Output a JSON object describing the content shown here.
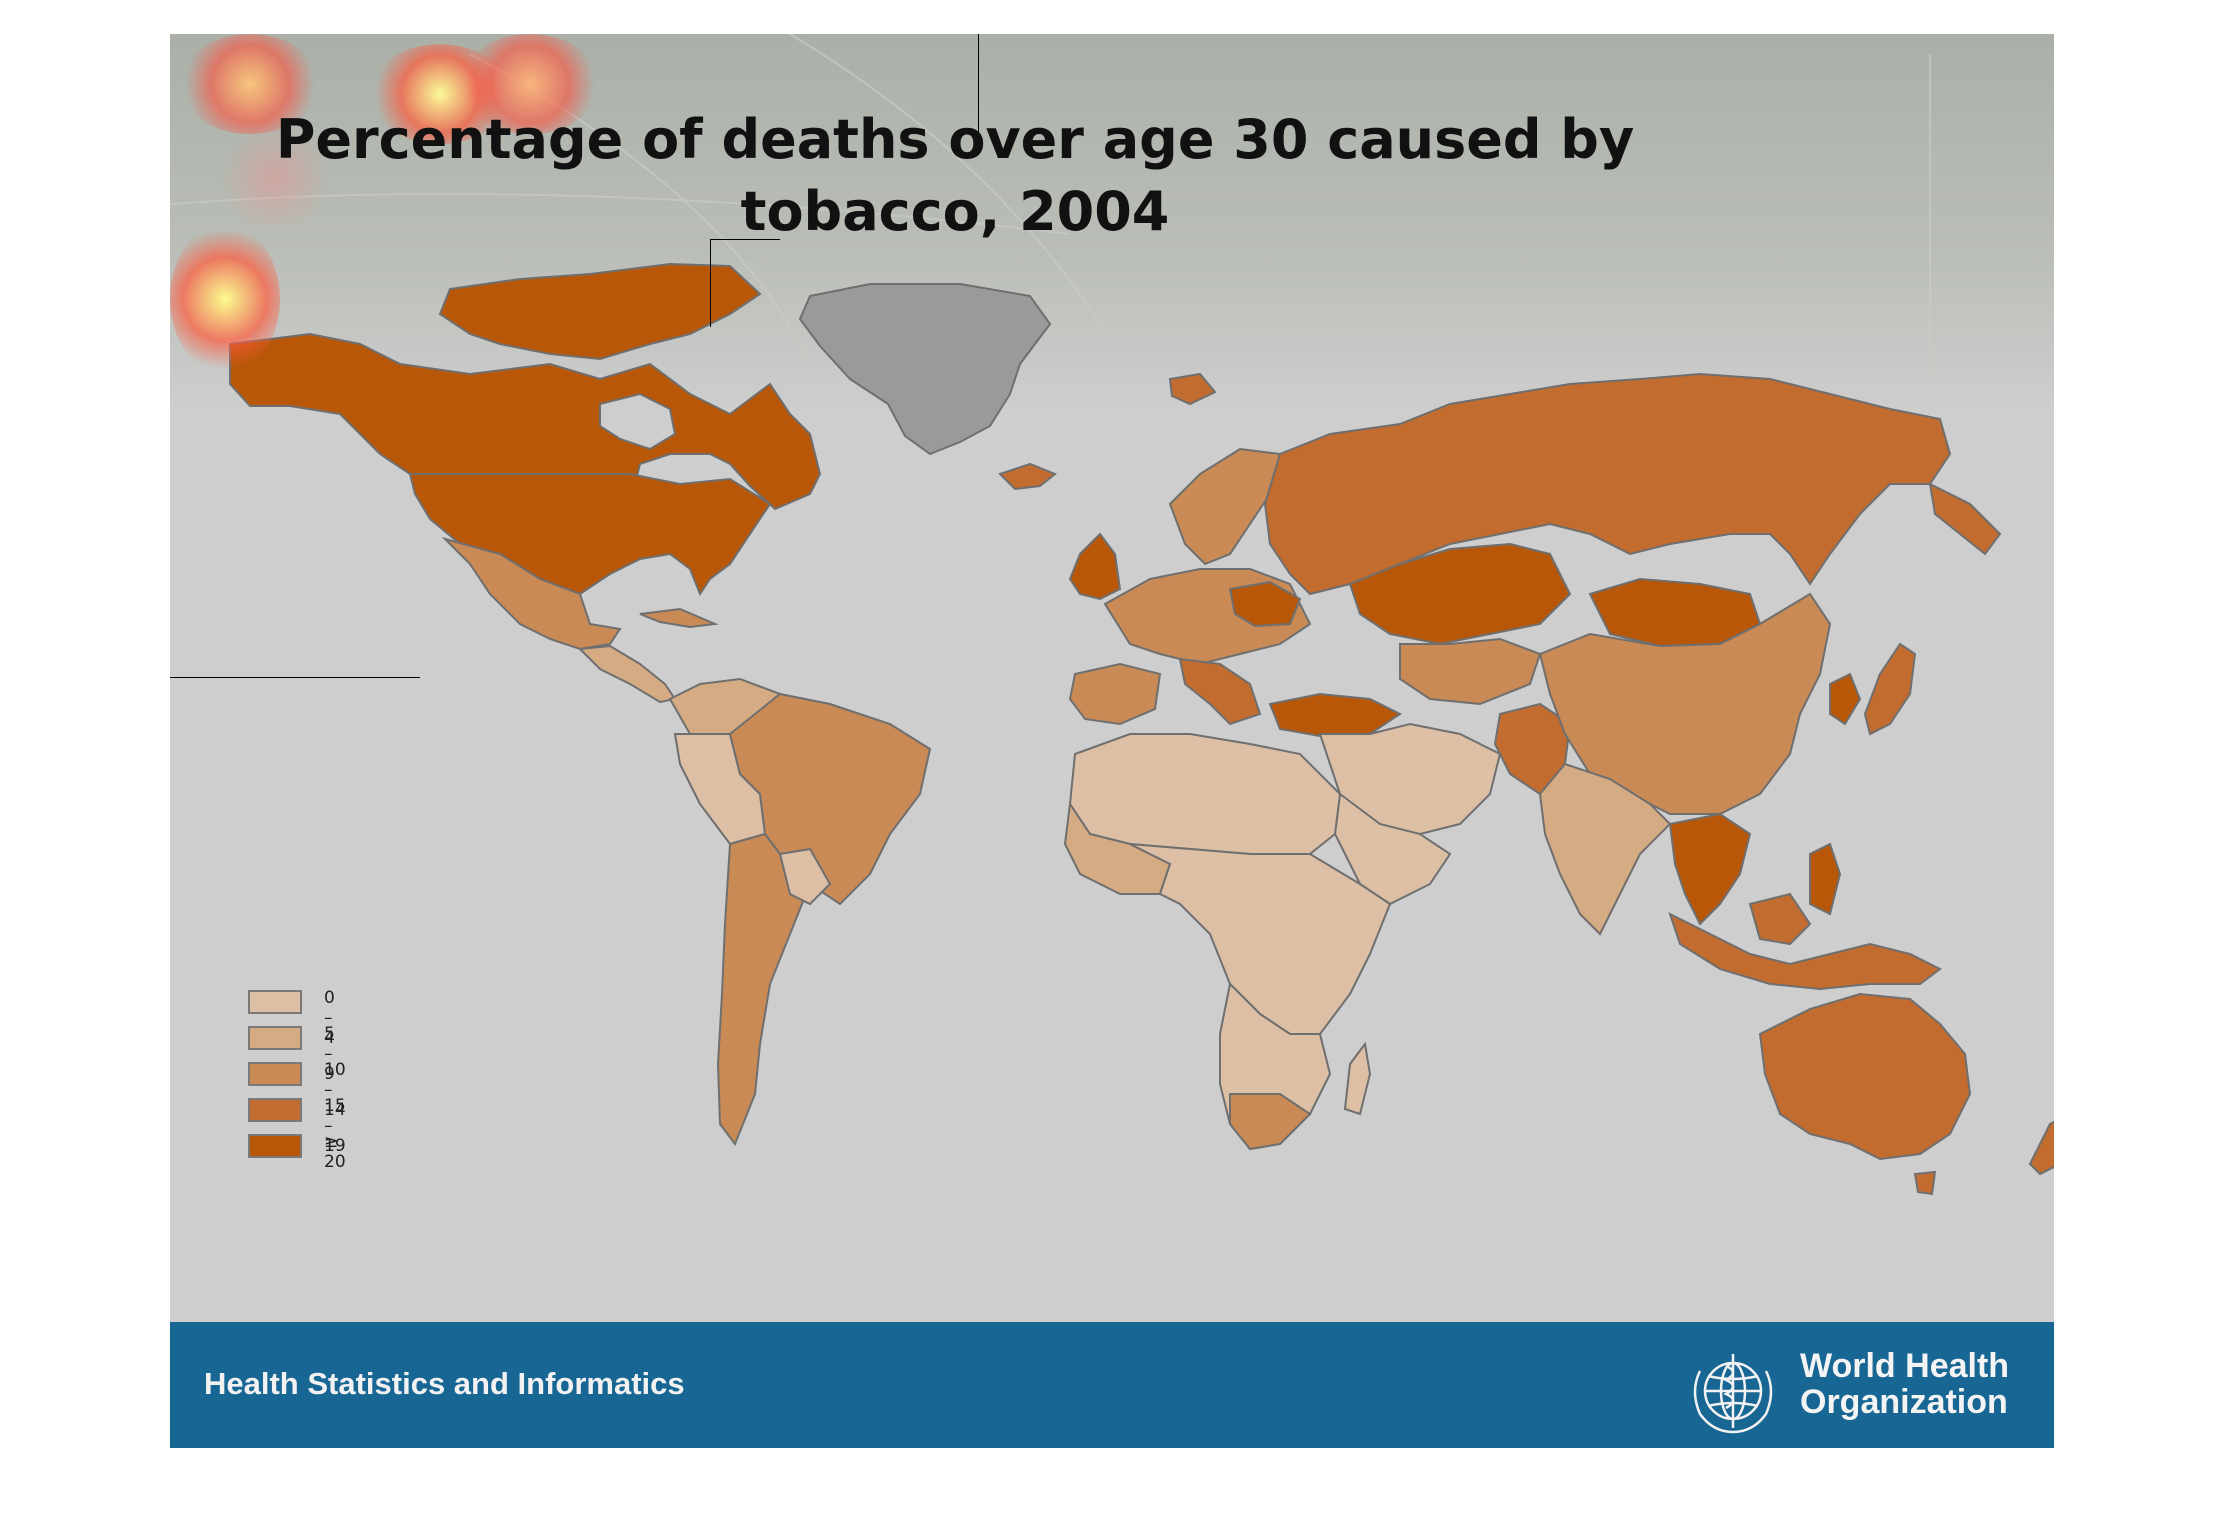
{
  "title": {
    "line1": "Percentage of deaths over age 30 caused by",
    "line2": "tobacco, 2004"
  },
  "legend": {
    "items": [
      {
        "label": "0 – 4",
        "color": "#dcbfa4"
      },
      {
        "label": "5 – 9",
        "color": "#d5ab83"
      },
      {
        "label": "10 – 14",
        "color": "#c98a55"
      },
      {
        "label": "15 – 19",
        "color": "#c26c30"
      },
      {
        "label": "≥ 20",
        "color": "#b85708"
      }
    ]
  },
  "map_colors": {
    "ocean": "#cecece",
    "no_data": "#9a9a9a",
    "border": "#6f6f6f"
  },
  "footer": {
    "left_text": "Health Statistics and Informatics",
    "org_line1": "World Health",
    "org_line2": "Organization",
    "background": "#176693"
  }
}
